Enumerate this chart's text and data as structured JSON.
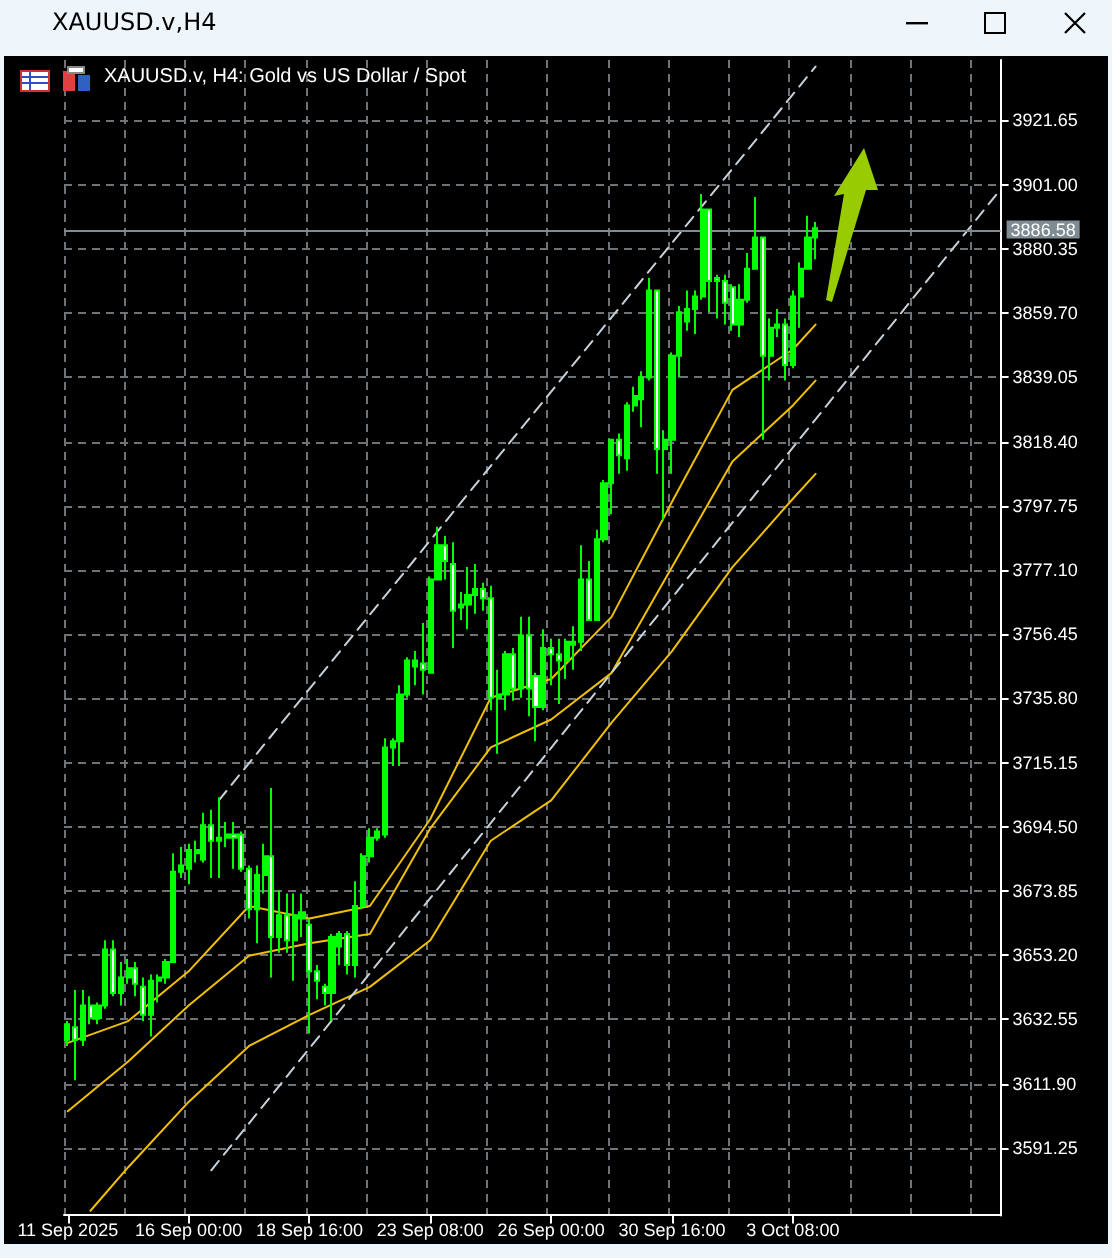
{
  "chart_data": {
    "type": "candlestick",
    "title": "XAUUSD.v,H4",
    "subtitle": "XAUUSD.v, H4:  Gold vs US Dollar / Spot",
    "color": "#00ff00",
    "grid": true,
    "categories": [
      "11 Sep 2025",
      null,
      null,
      null,
      null,
      null,
      null,
      null,
      null,
      null,
      null,
      null,
      null,
      null,
      null,
      null,
      "16 Sep 00:00",
      null,
      null,
      null,
      null,
      null,
      null,
      null,
      null,
      null,
      null,
      null,
      null,
      null,
      null,
      null,
      "18 Sep 16:00",
      null,
      null,
      null,
      null,
      null,
      null,
      null,
      null,
      null,
      null,
      null,
      null,
      null,
      null,
      null,
      "23 Sep 08:00",
      null,
      null,
      null,
      null,
      null,
      null,
      null,
      null,
      null,
      null,
      null,
      null,
      null,
      null,
      null,
      "26 Sep 00:00",
      null,
      null,
      null,
      null,
      null,
      null,
      null,
      null,
      null,
      null,
      null,
      null,
      null,
      null,
      null,
      "30 Sep 16:00",
      null,
      null,
      null,
      null,
      null,
      null,
      null,
      null,
      null,
      null,
      null,
      null,
      null,
      null,
      null,
      "3 Oct 08:00",
      null,
      null,
      null,
      null,
      null,
      null,
      null,
      null,
      null,
      null,
      null,
      null,
      null,
      null,
      null,
      null,
      null,
      null,
      null,
      null,
      null,
      null,
      null,
      null,
      null,
      null,
      null
    ],
    "ohlc": [
      [
        3626,
        3632,
        3624,
        3631
      ],
      [
        3630,
        3642,
        3613,
        3626
      ],
      [
        3626,
        3642,
        3624,
        3637
      ],
      [
        3637,
        3640,
        3631,
        3633
      ],
      [
        3633,
        3638,
        3631,
        3637
      ],
      [
        3637,
        3658,
        3636,
        3655
      ],
      [
        3655,
        3658,
        3640,
        3641
      ],
      [
        3641,
        3651,
        3637,
        3646
      ],
      [
        3646,
        3652,
        3644,
        3649
      ],
      [
        3649,
        3651,
        3640,
        3644
      ],
      [
        3643,
        3646,
        3632,
        3634
      ],
      [
        3634,
        3647,
        3627,
        3645
      ],
      [
        3645,
        3647,
        3638,
        3646
      ],
      [
        3646,
        3652,
        3644,
        3651
      ],
      [
        3651,
        3686,
        3651,
        3680
      ],
      [
        3680,
        3688,
        3678,
        3682
      ],
      [
        3681,
        3689,
        3676,
        3687
      ],
      [
        3686,
        3690,
        3683,
        3687
      ],
      [
        3684,
        3699,
        3683,
        3695
      ],
      [
        3695,
        3700,
        3678,
        3690
      ],
      [
        3690,
        3704,
        3678,
        3691
      ],
      [
        3691,
        3696,
        3688,
        3692
      ],
      [
        3692,
        3696,
        3681,
        3691
      ],
      [
        3692,
        3693,
        3680,
        3681
      ],
      [
        3681,
        3682,
        3665,
        3668
      ],
      [
        3668,
        3682,
        3657,
        3679
      ],
      [
        3679,
        3689,
        3673,
        3685
      ],
      [
        3685,
        3707,
        3646,
        3659
      ],
      [
        3659,
        3674,
        3654,
        3666
      ],
      [
        3666,
        3673,
        3654,
        3658
      ],
      [
        3658,
        3673,
        3645,
        3666
      ],
      [
        3665,
        3673,
        3659,
        3667
      ],
      [
        3663,
        3665,
        3628,
        3648
      ],
      [
        3648,
        3650,
        3639,
        3645
      ],
      [
        3643,
        3644,
        3637,
        3641
      ],
      [
        3641,
        3660,
        3632,
        3659
      ],
      [
        3656,
        3661,
        3650,
        3660
      ],
      [
        3660,
        3661,
        3647,
        3650
      ],
      [
        3650,
        3677,
        3646,
        3669
      ],
      [
        3669,
        3686,
        3668,
        3685
      ],
      [
        3685,
        3694,
        3683,
        3691
      ],
      [
        3691,
        3694,
        3690,
        3693
      ],
      [
        3692,
        3723,
        3691,
        3720
      ],
      [
        3720,
        3723,
        3714,
        3722
      ],
      [
        3722,
        3740,
        3714,
        3737
      ],
      [
        3737,
        3749,
        3736,
        3748
      ],
      [
        3746,
        3751,
        3740,
        3748
      ],
      [
        3747,
        3760,
        3737,
        3745
      ],
      [
        3744,
        3775,
        3744,
        3774
      ],
      [
        3774,
        3791,
        3774,
        3785
      ],
      [
        3785,
        3788,
        3774,
        3780
      ],
      [
        3779,
        3786,
        3752,
        3764
      ],
      [
        3765,
        3770,
        3761,
        3766
      ],
      [
        3766,
        3778,
        3758,
        3769
      ],
      [
        3769,
        3779,
        3763,
        3771
      ],
      [
        3771,
        3773,
        3764,
        3768
      ],
      [
        3768,
        3772,
        3732,
        3736
      ],
      [
        3736,
        3745,
        3718,
        3737
      ],
      [
        3737,
        3751,
        3732,
        3750
      ],
      [
        3750,
        3752,
        3735,
        3739
      ],
      [
        3739,
        3762,
        3736,
        3756
      ],
      [
        3756,
        3762,
        3730,
        3739
      ],
      [
        3743,
        3744,
        3722,
        3733
      ],
      [
        3733,
        3758,
        3732,
        3752
      ],
      [
        3752,
        3755,
        3740,
        3750
      ],
      [
        3750,
        3755,
        3734,
        3748
      ],
      [
        3748,
        3755,
        3742,
        3754
      ],
      [
        3753,
        3759,
        3745,
        3754
      ],
      [
        3754,
        3785,
        3751,
        3774
      ],
      [
        3774,
        3780,
        3761,
        3761
      ],
      [
        3761,
        3790,
        3761,
        3787
      ],
      [
        3787,
        3806,
        3786,
        3805
      ],
      [
        3805,
        3819,
        3795,
        3819
      ],
      [
        3819,
        3821,
        3808,
        3814
      ],
      [
        3813,
        3831,
        3809,
        3830
      ],
      [
        3830,
        3836,
        3828,
        3833
      ],
      [
        3832,
        3841,
        3823,
        3839
      ],
      [
        3839,
        3871,
        3838,
        3867
      ],
      [
        3867,
        3867,
        3808,
        3816
      ],
      [
        3816,
        3822,
        3793,
        3819
      ],
      [
        3819,
        3847,
        3808,
        3846
      ],
      [
        3846,
        3862,
        3839,
        3860
      ],
      [
        3857,
        3867,
        3854,
        3861
      ],
      [
        3861,
        3867,
        3853,
        3865
      ],
      [
        3865,
        3898,
        3864,
        3893
      ],
      [
        3893,
        3893,
        3860,
        3870
      ],
      [
        3871,
        3872,
        3858,
        3870
      ],
      [
        3870,
        3872,
        3856,
        3863
      ],
      [
        3868,
        3869,
        3854,
        3856
      ],
      [
        3856,
        3869,
        3852,
        3864
      ],
      [
        3864,
        3879,
        3863,
        3874
      ],
      [
        3874,
        3897,
        3874,
        3884
      ],
      [
        3884,
        3884,
        3819,
        3846
      ],
      [
        3846,
        3858,
        3838,
        3855
      ],
      [
        3855,
        3861,
        3852,
        3856
      ],
      [
        3856,
        3858,
        3838,
        3843
      ],
      [
        3843,
        3867,
        3842,
        3865
      ],
      [
        3865,
        3876,
        3855,
        3874
      ],
      [
        3874,
        3891,
        3874,
        3884
      ],
      [
        3884,
        3889,
        3877,
        3887
      ],
      null,
      null,
      null,
      null,
      null,
      null,
      null,
      null,
      null,
      null,
      null,
      null,
      null,
      null,
      null,
      null,
      null,
      null,
      null,
      null,
      null,
      null,
      null,
      null
    ],
    "series": [
      {
        "type": "line",
        "color": "#f0c000",
        "values": [
          3625,
          null,
          null,
          null,
          null,
          null,
          null,
          null,
          3632,
          null,
          null,
          null,
          null,
          null,
          null,
          null,
          3648,
          null,
          null,
          null,
          null,
          null,
          null,
          null,
          3669,
          null,
          null,
          null,
          null,
          null,
          null,
          null,
          3665,
          null,
          null,
          null,
          null,
          null,
          null,
          null,
          3669,
          null,
          null,
          null,
          null,
          null,
          null,
          null,
          3697,
          null,
          null,
          null,
          null,
          null,
          null,
          null,
          3736,
          null,
          null,
          null,
          null,
          null,
          null,
          null,
          3742,
          null,
          null,
          null,
          null,
          null,
          null,
          null,
          3762,
          null,
          null,
          null,
          null,
          null,
          null,
          null,
          3799,
          null,
          null,
          null,
          null,
          null,
          null,
          null,
          3835,
          null,
          null,
          null,
          null,
          null,
          null,
          null,
          3848,
          null,
          null,
          3856,
          null,
          null,
          null,
          null,
          null,
          null,
          null,
          null,
          null,
          null,
          null,
          null,
          null,
          null,
          null,
          null,
          null,
          null,
          null,
          null,
          null,
          null,
          null,
          null
        ]
      },
      {
        "type": "line",
        "color": "#f0c000",
        "values": [
          3603,
          null,
          null,
          null,
          null,
          null,
          null,
          null,
          3619,
          null,
          null,
          null,
          null,
          null,
          null,
          null,
          3637,
          null,
          null,
          null,
          null,
          null,
          null,
          null,
          3653,
          null,
          null,
          null,
          null,
          null,
          null,
          null,
          3657,
          null,
          null,
          null,
          null,
          null,
          null,
          null,
          3660,
          null,
          null,
          null,
          null,
          null,
          null,
          null,
          3694,
          null,
          null,
          null,
          null,
          null,
          null,
          null,
          3720,
          null,
          null,
          null,
          null,
          null,
          null,
          null,
          3729,
          null,
          null,
          null,
          null,
          null,
          null,
          null,
          3744,
          null,
          null,
          null,
          null,
          null,
          null,
          null,
          3778,
          null,
          null,
          null,
          null,
          null,
          null,
          null,
          3812,
          null,
          null,
          null,
          null,
          null,
          null,
          null,
          3830,
          null,
          null,
          3838,
          null,
          null,
          null,
          null,
          null,
          null,
          null,
          null,
          null,
          null,
          null,
          null,
          null,
          null,
          null,
          null,
          null,
          null,
          null,
          null,
          null,
          null,
          null,
          null
        ]
      },
      {
        "type": "line",
        "color": "#f0c000",
        "values": [
          null,
          null,
          null,
          3571,
          null,
          null,
          null,
          null,
          3585,
          null,
          null,
          null,
          null,
          null,
          null,
          null,
          3606,
          null,
          null,
          null,
          null,
          null,
          null,
          null,
          3624,
          null,
          null,
          null,
          null,
          null,
          null,
          null,
          3634,
          null,
          null,
          null,
          null,
          null,
          null,
          null,
          3643,
          null,
          null,
          null,
          null,
          null,
          null,
          null,
          3658,
          null,
          null,
          null,
          null,
          null,
          null,
          null,
          3690,
          null,
          null,
          null,
          null,
          null,
          null,
          null,
          3703,
          null,
          null,
          null,
          null,
          null,
          null,
          null,
          3728,
          null,
          null,
          null,
          null,
          null,
          null,
          null,
          3751,
          null,
          null,
          null,
          null,
          null,
          null,
          null,
          3778,
          null,
          null,
          null,
          null,
          null,
          null,
          null,
          3800,
          null,
          null,
          3808,
          null,
          null,
          null,
          null,
          null,
          null,
          null,
          null,
          null,
          null,
          null,
          null,
          null,
          null,
          null,
          null,
          null,
          null,
          null,
          null,
          null,
          null,
          null,
          null
        ]
      },
      {
        "type": "line",
        "color": "#c8d0d8",
        "line_style": "dashed",
        "values": [
          null,
          null,
          null,
          null,
          null,
          null,
          null,
          null,
          null,
          null,
          null,
          null,
          null,
          null,
          null,
          null,
          null,
          null,
          null,
          null,
          3703,
          null,
          null,
          null,
          null,
          null,
          null,
          null,
          null,
          null,
          null,
          null,
          null,
          null,
          null,
          null,
          null,
          null,
          null,
          null,
          null,
          null,
          null,
          null,
          null,
          null,
          null,
          null,
          null,
          null,
          null,
          null,
          null,
          null,
          null,
          null,
          null,
          null,
          null,
          null,
          null,
          null,
          null,
          null,
          null,
          null,
          null,
          null,
          null,
          null,
          null,
          null,
          null,
          null,
          null,
          null,
          null,
          null,
          null,
          null,
          null,
          null,
          null,
          null,
          null,
          null,
          null,
          null,
          null,
          null,
          null,
          null,
          null,
          null,
          null,
          null,
          null,
          null,
          null,
          3939,
          null,
          null,
          null,
          null,
          null,
          null,
          null,
          null,
          null,
          null,
          null,
          null,
          null,
          null,
          null,
          null,
          null,
          null,
          null,
          null,
          null,
          null,
          null,
          null
        ]
      },
      {
        "type": "line",
        "color": "#c8d0d8",
        "line_style": "dashed",
        "values": [
          null,
          null,
          null,
          null,
          null,
          null,
          null,
          null,
          null,
          null,
          null,
          null,
          null,
          null,
          null,
          null,
          null,
          null,
          null,
          3584,
          null,
          null,
          null,
          null,
          null,
          null,
          null,
          null,
          null,
          null,
          null,
          null,
          null,
          null,
          null,
          null,
          null,
          null,
          null,
          null,
          null,
          null,
          null,
          null,
          null,
          null,
          null,
          null,
          null,
          null,
          null,
          null,
          null,
          null,
          null,
          null,
          null,
          null,
          null,
          null,
          null,
          null,
          null,
          null,
          null,
          null,
          null,
          null,
          null,
          null,
          null,
          null,
          null,
          null,
          null,
          null,
          null,
          null,
          null,
          null,
          null,
          null,
          null,
          null,
          null,
          null,
          null,
          null,
          null,
          null,
          null,
          null,
          null,
          null,
          null,
          null,
          null,
          null,
          null,
          null,
          null,
          null,
          null,
          null,
          null,
          null,
          null,
          null,
          null,
          null,
          null,
          null,
          null,
          null,
          null,
          null,
          null,
          null,
          null,
          null,
          null,
          null,
          null,
          3898
        ]
      }
    ],
    "ylim": [
      3569.5,
      3941.1
    ],
    "yticks": [
      3591.25,
      {
        "value": 3611.9,
        "label": "3611.90"
      },
      3632.55,
      {
        "value": 3653.2,
        "label": "3653.20"
      },
      3673.85,
      {
        "value": 3694.5,
        "label": "3694.50"
      },
      3715.15,
      {
        "value": 3735.8,
        "label": "3735.80"
      },
      3756.45,
      {
        "value": 3777.1,
        "label": "3777.10"
      },
      3797.75,
      {
        "value": 3818.4,
        "label": "3818.40"
      },
      3839.05,
      {
        "value": 3859.7,
        "label": "3859.70"
      },
      3880.35,
      {
        "value": 3901,
        "label": "3901.00"
      },
      3921.65
    ],
    "ref_lines": [
      {
        "axis": "y",
        "value": 3886.58,
        "label": "3886.58",
        "color": "#7f8c94"
      }
    ]
  }
}
